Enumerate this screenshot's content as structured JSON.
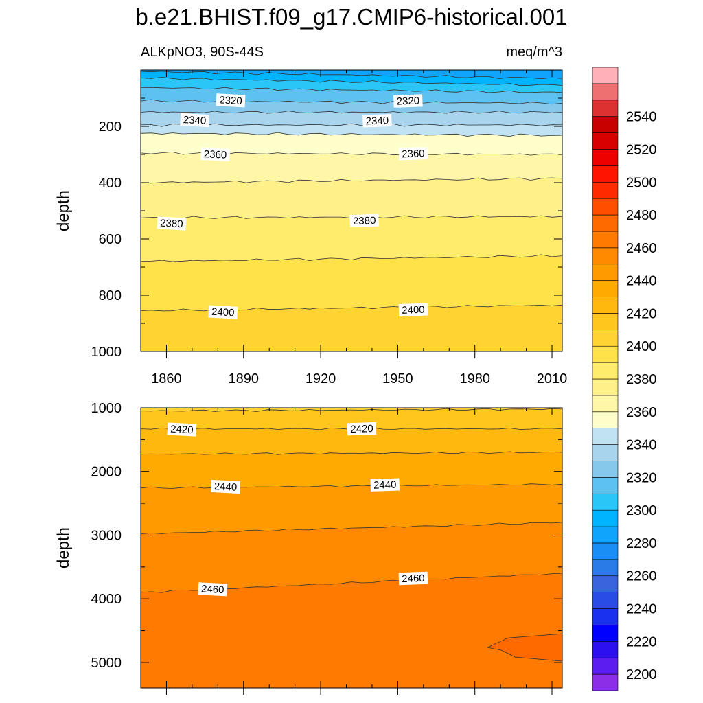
{
  "figure": {
    "title": "b.e21.BHIST.f09_g17.CMIP6-historical.001",
    "left_subtitle": "ALKpNO3, 90S-44S",
    "right_subtitle": "meq/m^3"
  },
  "chart_data": [
    {
      "type": "contour",
      "panel": "upper",
      "ylabel": "depth",
      "xlabel": "",
      "xlim": [
        1850,
        2014
      ],
      "ylim": [
        1000,
        0
      ],
      "y_reversed": true,
      "x_ticks": [
        1860,
        1890,
        1920,
        1950,
        1980,
        2010
      ],
      "x_tick_labels": [
        "1860",
        "1890",
        "1920",
        "1950",
        "1980",
        "2010"
      ],
      "y_ticks": [
        200,
        400,
        600,
        800,
        1000
      ],
      "y_tick_labels": [
        "200",
        "400",
        "600",
        "800",
        "1000"
      ],
      "contour_depths": [
        {
          "level": 2290,
          "depth_start": 5,
          "depth_end": 30
        },
        {
          "level": 2300,
          "depth_start": 28,
          "depth_end": 55
        },
        {
          "level": 2310,
          "depth_start": 62,
          "depth_end": 80
        },
        {
          "level": 2320,
          "depth_start": 110,
          "depth_end": 118
        },
        {
          "level": 2330,
          "depth_start": 150,
          "depth_end": 150
        },
        {
          "level": 2340,
          "depth_start": 195,
          "depth_end": 195
        },
        {
          "level": 2350,
          "depth_start": 225,
          "depth_end": 232
        },
        {
          "level": 2360,
          "depth_start": 295,
          "depth_end": 300
        },
        {
          "level": 2370,
          "depth_start": 400,
          "depth_end": 385
        },
        {
          "level": 2380,
          "depth_start": 525,
          "depth_end": 520
        },
        {
          "level": 2390,
          "depth_start": 680,
          "depth_end": 660
        },
        {
          "level": 2400,
          "depth_start": 855,
          "depth_end": 835
        }
      ],
      "contour_labels": [
        {
          "text": "2320",
          "year": 1885,
          "depth": 108
        },
        {
          "text": "2320",
          "year": 1954,
          "depth": 110
        },
        {
          "text": "2340",
          "year": 1871,
          "depth": 178
        },
        {
          "text": "2340",
          "year": 1942,
          "depth": 180
        },
        {
          "text": "2360",
          "year": 1879,
          "depth": 300
        },
        {
          "text": "2360",
          "year": 1956,
          "depth": 297
        },
        {
          "text": "2380",
          "year": 1862,
          "depth": 545
        },
        {
          "text": "2380",
          "year": 1937,
          "depth": 535
        },
        {
          "text": "2400",
          "year": 1882,
          "depth": 860
        },
        {
          "text": "2400",
          "year": 1956,
          "depth": 852
        }
      ]
    },
    {
      "type": "contour",
      "panel": "lower",
      "ylabel": "depth",
      "xlabel": "",
      "xlim": [
        1850,
        2014
      ],
      "ylim": [
        5400,
        1000
      ],
      "y_reversed": true,
      "y_ticks": [
        1000,
        2000,
        3000,
        4000,
        5000
      ],
      "y_tick_labels": [
        "1000",
        "2000",
        "3000",
        "4000",
        "5000"
      ],
      "contour_depths": [
        {
          "level": 2410,
          "depth_start": 1050,
          "depth_end": 1020
        },
        {
          "level": 2420,
          "depth_start": 1330,
          "depth_end": 1330
        },
        {
          "level": 2430,
          "depth_start": 1730,
          "depth_end": 1700
        },
        {
          "level": 2440,
          "depth_start": 2260,
          "depth_end": 2200
        },
        {
          "level": 2450,
          "depth_start": 2980,
          "depth_end": 2800
        },
        {
          "level": 2460,
          "depth_start": 3900,
          "depth_end": 3600
        }
      ],
      "region_2470": {
        "year_range": [
          1985,
          2014
        ],
        "depth_range": [
          4550,
          4980
        ]
      },
      "contour_labels": [
        {
          "text": "2420",
          "year": 1866,
          "depth": 1340
        },
        {
          "text": "2420",
          "year": 1936,
          "depth": 1330
        },
        {
          "text": "2440",
          "year": 1883,
          "depth": 2240
        },
        {
          "text": "2440",
          "year": 1945,
          "depth": 2210
        },
        {
          "text": "2460",
          "year": 1878,
          "depth": 3850
        },
        {
          "text": "2460",
          "year": 1956,
          "depth": 3680
        }
      ]
    },
    {
      "type": "colorbar",
      "tick_labels": [
        "2200",
        "2220",
        "2240",
        "2260",
        "2280",
        "2300",
        "2320",
        "2340",
        "2360",
        "2380",
        "2400",
        "2420",
        "2440",
        "2460",
        "2480",
        "2500",
        "2520",
        "2540"
      ],
      "tick_values": [
        2200,
        2220,
        2240,
        2260,
        2280,
        2300,
        2320,
        2340,
        2360,
        2380,
        2400,
        2420,
        2440,
        2460,
        2480,
        2500,
        2520,
        2540
      ],
      "levels_min": 2190,
      "level_step": 10,
      "colors": [
        "#8a2ee8",
        "#5c1ef0",
        "#2c10f0",
        "#0000ff",
        "#1a32f0",
        "#2a4ce6",
        "#3a64dc",
        "#2a7ae8",
        "#1a8ef4",
        "#10a4fc",
        "#00b4ff",
        "#2ac6f8",
        "#5ec2f0",
        "#86c8ec",
        "#a8d4ee",
        "#c0e2f2",
        "#ffffcc",
        "#fff6a8",
        "#fff08a",
        "#ffec6c",
        "#ffe24a",
        "#ffd432",
        "#ffc61e",
        "#ffb80e",
        "#ffaa00",
        "#ff9a00",
        "#ff8a00",
        "#ff7a00",
        "#ff6a00",
        "#ff4e00",
        "#ff2a00",
        "#ff1400",
        "#ee0000",
        "#d80000",
        "#c80000",
        "#dd3030",
        "#ee7070",
        "#ffb0b8"
      ]
    }
  ]
}
